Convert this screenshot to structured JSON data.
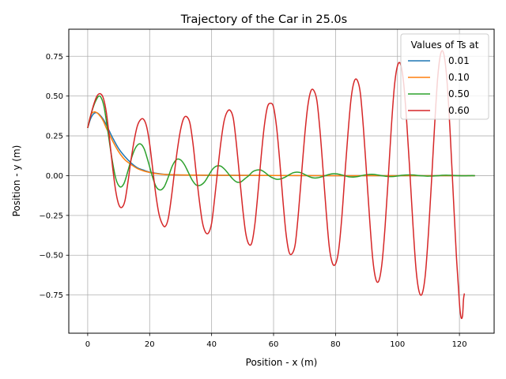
{
  "chart_data": {
    "type": "line",
    "title": "Trajectory of the Car in 25.0s",
    "xlabel": "Position - x (m)",
    "ylabel": "Position - y (m)",
    "xlim": [
      -6.1,
      131.2
    ],
    "ylim": [
      -0.99,
      0.92
    ],
    "xticks": [
      0,
      20,
      40,
      60,
      80,
      100,
      120
    ],
    "yticks": [
      -0.75,
      -0.5,
      -0.25,
      0.0,
      0.25,
      0.5,
      0.75
    ],
    "xtick_labels": [
      "0",
      "20",
      "40",
      "60",
      "80",
      "100",
      "120"
    ],
    "ytick_labels": [
      "−0.75",
      "−0.50",
      "−0.25",
      "0.00",
      "0.25",
      "0.50",
      "0.75"
    ],
    "grid": true,
    "legend": {
      "title": "Values of Ts at",
      "placement": "top-right"
    },
    "series": [
      {
        "name": "0.01",
        "color": "#1f77b4",
        "points": [
          [
            0,
            0.3
          ],
          [
            1,
            0.36
          ],
          [
            2,
            0.39
          ],
          [
            3,
            0.395
          ],
          [
            4,
            0.38
          ],
          [
            5,
            0.355
          ],
          [
            6,
            0.32
          ],
          [
            7,
            0.28
          ],
          [
            8,
            0.24
          ],
          [
            10,
            0.17
          ],
          [
            12,
            0.12
          ],
          [
            14,
            0.08
          ],
          [
            16,
            0.05
          ],
          [
            18,
            0.035
          ],
          [
            20,
            0.022
          ],
          [
            22,
            0.015
          ],
          [
            25,
            0.008
          ],
          [
            30,
            0.004
          ],
          [
            40,
            0.002
          ],
          [
            60,
            0.001
          ],
          [
            80,
            0.0
          ],
          [
            100,
            0.0
          ],
          [
            125,
            0.0
          ]
        ]
      },
      {
        "name": "0.10",
        "color": "#ff7f0e",
        "points": [
          [
            0,
            0.3
          ],
          [
            1,
            0.38
          ],
          [
            2,
            0.4
          ],
          [
            3,
            0.395
          ],
          [
            4,
            0.375
          ],
          [
            5,
            0.345
          ],
          [
            6,
            0.3
          ],
          [
            7,
            0.26
          ],
          [
            8,
            0.22
          ],
          [
            10,
            0.15
          ],
          [
            12,
            0.1
          ],
          [
            14,
            0.07
          ],
          [
            16,
            0.045
          ],
          [
            18,
            0.03
          ],
          [
            20,
            0.02
          ],
          [
            22,
            0.013
          ],
          [
            25,
            0.007
          ],
          [
            30,
            0.004
          ],
          [
            40,
            0.002
          ],
          [
            60,
            0.001
          ],
          [
            80,
            0.0
          ],
          [
            100,
            0.0
          ],
          [
            125,
            0.0
          ]
        ]
      },
      {
        "name": "0.50",
        "color": "#2ca02c",
        "points": [
          [
            0,
            0.3
          ],
          [
            1.3,
            0.4
          ],
          [
            2.6,
            0.47
          ],
          [
            3.9,
            0.5
          ],
          [
            5.2,
            0.44
          ],
          [
            6.5,
            0.28
          ],
          [
            7.8,
            0.11
          ],
          [
            9.1,
            -0.02
          ],
          [
            10.4,
            -0.07
          ],
          [
            11.7,
            -0.05
          ],
          [
            13,
            0.03
          ],
          [
            14.3,
            0.12
          ],
          [
            15.6,
            0.18
          ],
          [
            16.9,
            0.2
          ],
          [
            18.2,
            0.17
          ],
          [
            19.5,
            0.09
          ],
          [
            20.8,
            0.0
          ],
          [
            22.1,
            -0.07
          ],
          [
            23.4,
            -0.09
          ],
          [
            24.7,
            -0.07
          ],
          [
            26,
            -0.01
          ],
          [
            27.3,
            0.06
          ],
          [
            28.6,
            0.1
          ],
          [
            29.9,
            0.1
          ],
          [
            31.2,
            0.07
          ],
          [
            32.5,
            0.02
          ],
          [
            33.8,
            -0.03
          ],
          [
            35.1,
            -0.06
          ],
          [
            36.4,
            -0.06
          ],
          [
            37.7,
            -0.04
          ],
          [
            39,
            0.0
          ],
          [
            40.3,
            0.04
          ],
          [
            41.6,
            0.06
          ],
          [
            42.9,
            0.06
          ],
          [
            44.2,
            0.04
          ],
          [
            45.5,
            0.01
          ],
          [
            46.8,
            -0.02
          ],
          [
            48.1,
            -0.04
          ],
          [
            49.4,
            -0.04
          ],
          [
            50.7,
            -0.02
          ],
          [
            52,
            0.0
          ],
          [
            53.3,
            0.025
          ],
          [
            54.6,
            0.035
          ],
          [
            55.9,
            0.035
          ],
          [
            57.2,
            0.02
          ],
          [
            58.5,
            0.0
          ],
          [
            59.8,
            -0.015
          ],
          [
            61.1,
            -0.023
          ],
          [
            62.4,
            -0.02
          ],
          [
            63.7,
            -0.01
          ],
          [
            65,
            0.005
          ],
          [
            66.3,
            0.018
          ],
          [
            67.6,
            0.022
          ],
          [
            68.9,
            0.018
          ],
          [
            70.2,
            0.006
          ],
          [
            71.5,
            -0.006
          ],
          [
            72.8,
            -0.014
          ],
          [
            74.1,
            -0.014
          ],
          [
            75.4,
            -0.008
          ],
          [
            76.7,
            0.0
          ],
          [
            78,
            0.008
          ],
          [
            79.3,
            0.012
          ],
          [
            80.6,
            0.011
          ],
          [
            81.9,
            0.005
          ],
          [
            83.2,
            -0.002
          ],
          [
            84.5,
            -0.008
          ],
          [
            85.8,
            -0.009
          ],
          [
            87.1,
            -0.006
          ],
          [
            88.4,
            0.0
          ],
          [
            89.7,
            0.005
          ],
          [
            91,
            0.008
          ],
          [
            92.3,
            0.008
          ],
          [
            93.6,
            0.004
          ],
          [
            94.9,
            0.0
          ],
          [
            96.2,
            -0.004
          ],
          [
            97.5,
            -0.006
          ],
          [
            98.8,
            -0.005
          ],
          [
            100.1,
            -0.002
          ],
          [
            101.4,
            0.002
          ],
          [
            102.7,
            0.004
          ],
          [
            104,
            0.005
          ],
          [
            105.3,
            0.004
          ],
          [
            106.6,
            0.001
          ],
          [
            107.9,
            -0.001
          ],
          [
            109.2,
            -0.003
          ],
          [
            110.5,
            -0.003
          ],
          [
            111.8,
            -0.002
          ],
          [
            113.1,
            0.0
          ],
          [
            114.4,
            0.002
          ],
          [
            115.7,
            0.003
          ],
          [
            117,
            0.002
          ],
          [
            118.3,
            0.001
          ],
          [
            119.6,
            0.0
          ],
          [
            120.9,
            -0.001
          ],
          [
            122.2,
            -0.001
          ],
          [
            123.5,
            0.0
          ],
          [
            125,
            0.0
          ]
        ]
      },
      {
        "name": "0.60",
        "color": "#d62728",
        "points": [
          [
            0,
            0.3
          ],
          [
            1,
            0.38
          ],
          [
            2,
            0.45
          ],
          [
            3,
            0.5
          ],
          [
            4,
            0.515
          ],
          [
            5,
            0.49
          ],
          [
            6,
            0.4
          ],
          [
            7,
            0.24
          ],
          [
            8,
            0.06
          ],
          [
            9,
            -0.09
          ],
          [
            10,
            -0.18
          ],
          [
            11,
            -0.2
          ],
          [
            12,
            -0.16
          ],
          [
            13,
            -0.04
          ],
          [
            14,
            0.1
          ],
          [
            15,
            0.22
          ],
          [
            16,
            0.31
          ],
          [
            17,
            0.35
          ],
          [
            18,
            0.355
          ],
          [
            19,
            0.31
          ],
          [
            20,
            0.2
          ],
          [
            21,
            0.04
          ],
          [
            22,
            -0.12
          ],
          [
            23,
            -0.24
          ],
          [
            24,
            -0.3
          ],
          [
            25,
            -0.32
          ],
          [
            26,
            -0.27
          ],
          [
            27,
            -0.14
          ],
          [
            28,
            0.02
          ],
          [
            29,
            0.17
          ],
          [
            30,
            0.29
          ],
          [
            31,
            0.36
          ],
          [
            32,
            0.37
          ],
          [
            33,
            0.33
          ],
          [
            34,
            0.2
          ],
          [
            35,
            0.02
          ],
          [
            36,
            -0.15
          ],
          [
            37,
            -0.29
          ],
          [
            38,
            -0.355
          ],
          [
            39,
            -0.36
          ],
          [
            40,
            -0.3
          ],
          [
            41,
            -0.14
          ],
          [
            42,
            0.04
          ],
          [
            43,
            0.21
          ],
          [
            44,
            0.34
          ],
          [
            45,
            0.4
          ],
          [
            46,
            0.41
          ],
          [
            47,
            0.36
          ],
          [
            48,
            0.2
          ],
          [
            49,
            0.0
          ],
          [
            50,
            -0.2
          ],
          [
            51,
            -0.36
          ],
          [
            52,
            -0.43
          ],
          [
            53,
            -0.42
          ],
          [
            54,
            -0.3
          ],
          [
            55,
            -0.1
          ],
          [
            56,
            0.12
          ],
          [
            57,
            0.31
          ],
          [
            58,
            0.43
          ],
          [
            59,
            0.455
          ],
          [
            60,
            0.43
          ],
          [
            61,
            0.3
          ],
          [
            62,
            0.09
          ],
          [
            63,
            -0.15
          ],
          [
            64,
            -0.36
          ],
          [
            65,
            -0.48
          ],
          [
            66,
            -0.49
          ],
          [
            67,
            -0.43
          ],
          [
            68,
            -0.24
          ],
          [
            69,
            0.0
          ],
          [
            70,
            0.24
          ],
          [
            71,
            0.43
          ],
          [
            72,
            0.53
          ],
          [
            73,
            0.535
          ],
          [
            74,
            0.47
          ],
          [
            75,
            0.28
          ],
          [
            76,
            0.03
          ],
          [
            77,
            -0.23
          ],
          [
            78,
            -0.45
          ],
          [
            79,
            -0.55
          ],
          [
            80,
            -0.555
          ],
          [
            81,
            -0.47
          ],
          [
            82,
            -0.27
          ],
          [
            83,
            0.0
          ],
          [
            84,
            0.26
          ],
          [
            85,
            0.48
          ],
          [
            86,
            0.59
          ],
          [
            87,
            0.6
          ],
          [
            88,
            0.52
          ],
          [
            89,
            0.3
          ],
          [
            90,
            0.02
          ],
          [
            91,
            -0.27
          ],
          [
            92,
            -0.52
          ],
          [
            93,
            -0.65
          ],
          [
            94,
            -0.66
          ],
          [
            95,
            -0.55
          ],
          [
            96,
            -0.32
          ],
          [
            97,
            -0.02
          ],
          [
            98,
            0.3
          ],
          [
            99,
            0.56
          ],
          [
            100,
            0.69
          ],
          [
            101,
            0.7
          ],
          [
            102,
            0.58
          ],
          [
            103,
            0.33
          ],
          [
            104,
            0.02
          ],
          [
            105,
            -0.31
          ],
          [
            106,
            -0.59
          ],
          [
            107,
            -0.73
          ],
          [
            108,
            -0.74
          ],
          [
            109,
            -0.62
          ],
          [
            110,
            -0.36
          ],
          [
            111,
            -0.03
          ],
          [
            112,
            0.32
          ],
          [
            113,
            0.62
          ],
          [
            114,
            0.77
          ],
          [
            115,
            0.76
          ],
          [
            116,
            0.59
          ],
          [
            117,
            0.27
          ],
          [
            118,
            -0.12
          ],
          [
            119,
            -0.5
          ],
          [
            120,
            -0.8
          ],
          [
            120.5,
            -0.89
          ],
          [
            121,
            -0.88
          ],
          [
            121.3,
            -0.78
          ],
          [
            121.6,
            -0.74
          ]
        ]
      }
    ]
  }
}
